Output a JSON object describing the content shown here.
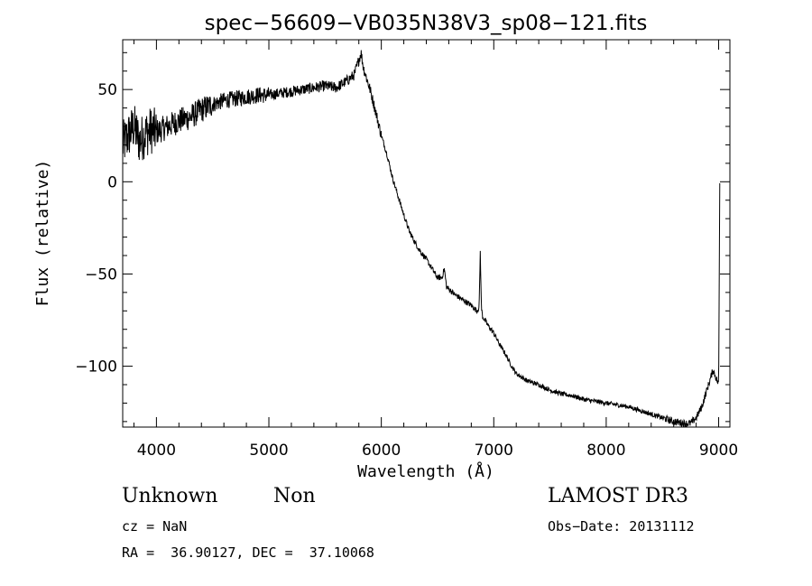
{
  "chart_data": {
    "type": "line",
    "title": "spec−56609−VB035N38V3_sp08−121.fits",
    "xlabel": "Wavelength (Å)",
    "ylabel": "Flux (relative)",
    "xlim": [
      3700,
      9100
    ],
    "ylim": [
      -133,
      77
    ],
    "xticks": [
      4000,
      5000,
      6000,
      7000,
      8000,
      9000
    ],
    "xtick_labels": [
      "4000",
      "5000",
      "6000",
      "7000",
      "8000",
      "9000"
    ],
    "yticks": [
      50,
      0,
      -50,
      -100
    ],
    "ytick_labels": [
      "50",
      "0",
      "−50",
      "−100"
    ],
    "grid": false,
    "series": [
      {
        "name": "flux",
        "x": [
          3700,
          3750,
          3800,
          3850,
          3900,
          3950,
          4000,
          4100,
          4200,
          4300,
          4400,
          4500,
          4600,
          4700,
          4800,
          4900,
          5000,
          5100,
          5200,
          5300,
          5400,
          5500,
          5600,
          5700,
          5760,
          5800,
          5820,
          5840,
          5900,
          5950,
          6000,
          6050,
          6100,
          6150,
          6200,
          6250,
          6300,
          6350,
          6400,
          6450,
          6500,
          6540,
          6560,
          6580,
          6600,
          6650,
          6700,
          6750,
          6800,
          6850,
          6870,
          6880,
          6890,
          6900,
          6950,
          7000,
          7050,
          7100,
          7150,
          7200,
          7300,
          7400,
          7500,
          7600,
          7700,
          7800,
          7900,
          8000,
          8100,
          8200,
          8300,
          8400,
          8500,
          8600,
          8700,
          8750,
          8800,
          8850,
          8900,
          8950,
          9000,
          9010
        ],
        "y": [
          20,
          25,
          30,
          22,
          26,
          28,
          27,
          30,
          33,
          35,
          39,
          42,
          44,
          45,
          46,
          47,
          47,
          48,
          49,
          50,
          51,
          52,
          51,
          55,
          58,
          66,
          70,
          62,
          50,
          38,
          25,
          15,
          2,
          -8,
          -18,
          -27,
          -33,
          -38,
          -42,
          -47,
          -52,
          -52,
          -47,
          -57,
          -58,
          -61,
          -63,
          -65,
          -67,
          -70,
          -68,
          -38,
          -68,
          -73,
          -78,
          -82,
          -88,
          -93,
          -99,
          -104,
          -108,
          -110,
          -113,
          -115,
          -116,
          -118,
          -119,
          -120,
          -121,
          -122,
          -124,
          -126,
          -128,
          -130,
          -131,
          -131,
          -128,
          -122,
          -112,
          -102,
          -110,
          0
        ]
      }
    ]
  },
  "info": {
    "classification": "Unknown",
    "subclass": "Non",
    "survey": "LAMOST DR3",
    "cz_line": "cz = NaN",
    "obs_date_line": "Obs−Date: 20131112",
    "radec_line": "RA =  36.90127, DEC =  37.10068"
  }
}
